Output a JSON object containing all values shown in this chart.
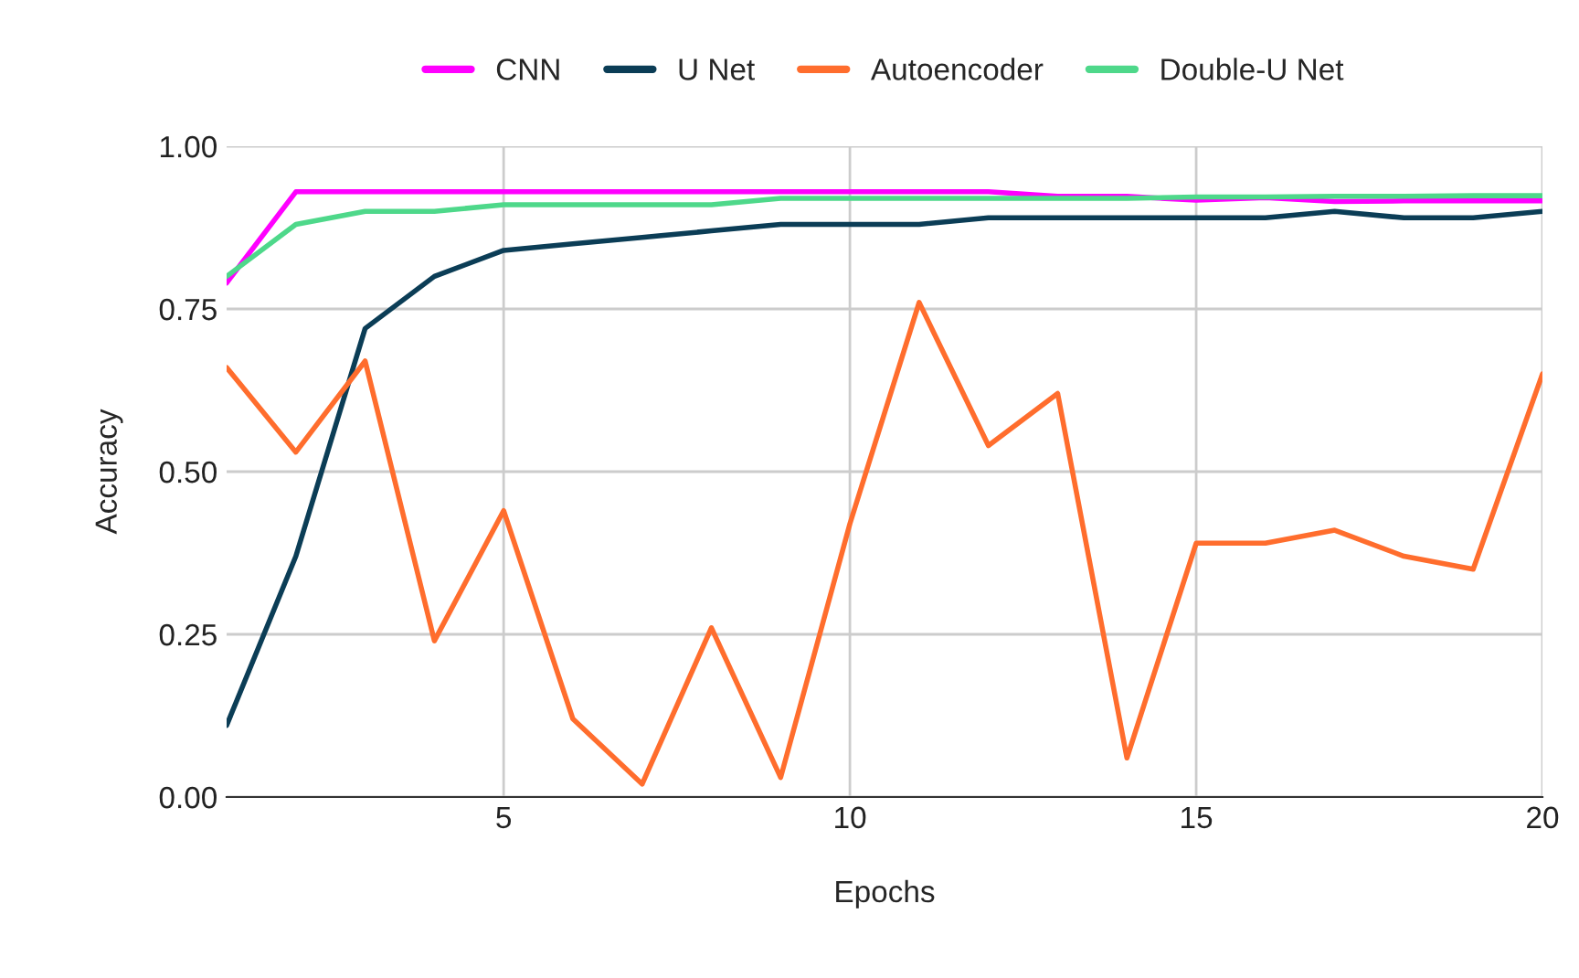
{
  "chart_data": {
    "type": "line",
    "xlabel": "Epochs",
    "ylabel": "Accuracy",
    "x": [
      1,
      2,
      3,
      4,
      5,
      6,
      7,
      8,
      9,
      10,
      11,
      12,
      13,
      14,
      15,
      16,
      17,
      18,
      19,
      20
    ],
    "series": [
      {
        "name": "CNN",
        "color": "#ff00ff",
        "values": [
          0.79,
          0.93,
          0.93,
          0.93,
          0.93,
          0.93,
          0.93,
          0.93,
          0.93,
          0.93,
          0.93,
          0.93,
          0.923,
          0.923,
          0.917,
          0.921,
          0.915,
          0.916,
          0.916,
          0.916
        ]
      },
      {
        "name": "U Net",
        "color": "#0b3d56",
        "values": [
          0.11,
          0.37,
          0.72,
          0.8,
          0.84,
          0.85,
          0.86,
          0.87,
          0.88,
          0.88,
          0.88,
          0.89,
          0.89,
          0.89,
          0.89,
          0.89,
          0.9,
          0.89,
          0.89,
          0.9
        ]
      },
      {
        "name": "Autoencoder",
        "color": "#ff6d2d",
        "values": [
          0.66,
          0.53,
          0.67,
          0.24,
          0.44,
          0.12,
          0.02,
          0.26,
          0.03,
          0.42,
          0.76,
          0.54,
          0.62,
          0.06,
          0.39,
          0.39,
          0.41,
          0.37,
          0.35,
          0.65
        ]
      },
      {
        "name": "Double-U Net",
        "color": "#4ed88a",
        "values": [
          0.8,
          0.88,
          0.9,
          0.9,
          0.91,
          0.91,
          0.91,
          0.91,
          0.92,
          0.92,
          0.92,
          0.92,
          0.92,
          0.92,
          0.922,
          0.922,
          0.923,
          0.923,
          0.924,
          0.924
        ]
      }
    ],
    "xlim": [
      1,
      20
    ],
    "xticks": [
      5,
      10,
      15,
      20
    ],
    "ylim": [
      0,
      1
    ],
    "yticks": [
      {
        "value": 0,
        "label": "0.00"
      },
      {
        "value": 0.25,
        "label": "0.25"
      },
      {
        "value": 0.5,
        "label": "0.50"
      },
      {
        "value": 0.75,
        "label": "0.75"
      },
      {
        "value": 1,
        "label": "1.00"
      }
    ],
    "grid": true,
    "legend": "top",
    "line_style": "solid",
    "marker": "none"
  }
}
